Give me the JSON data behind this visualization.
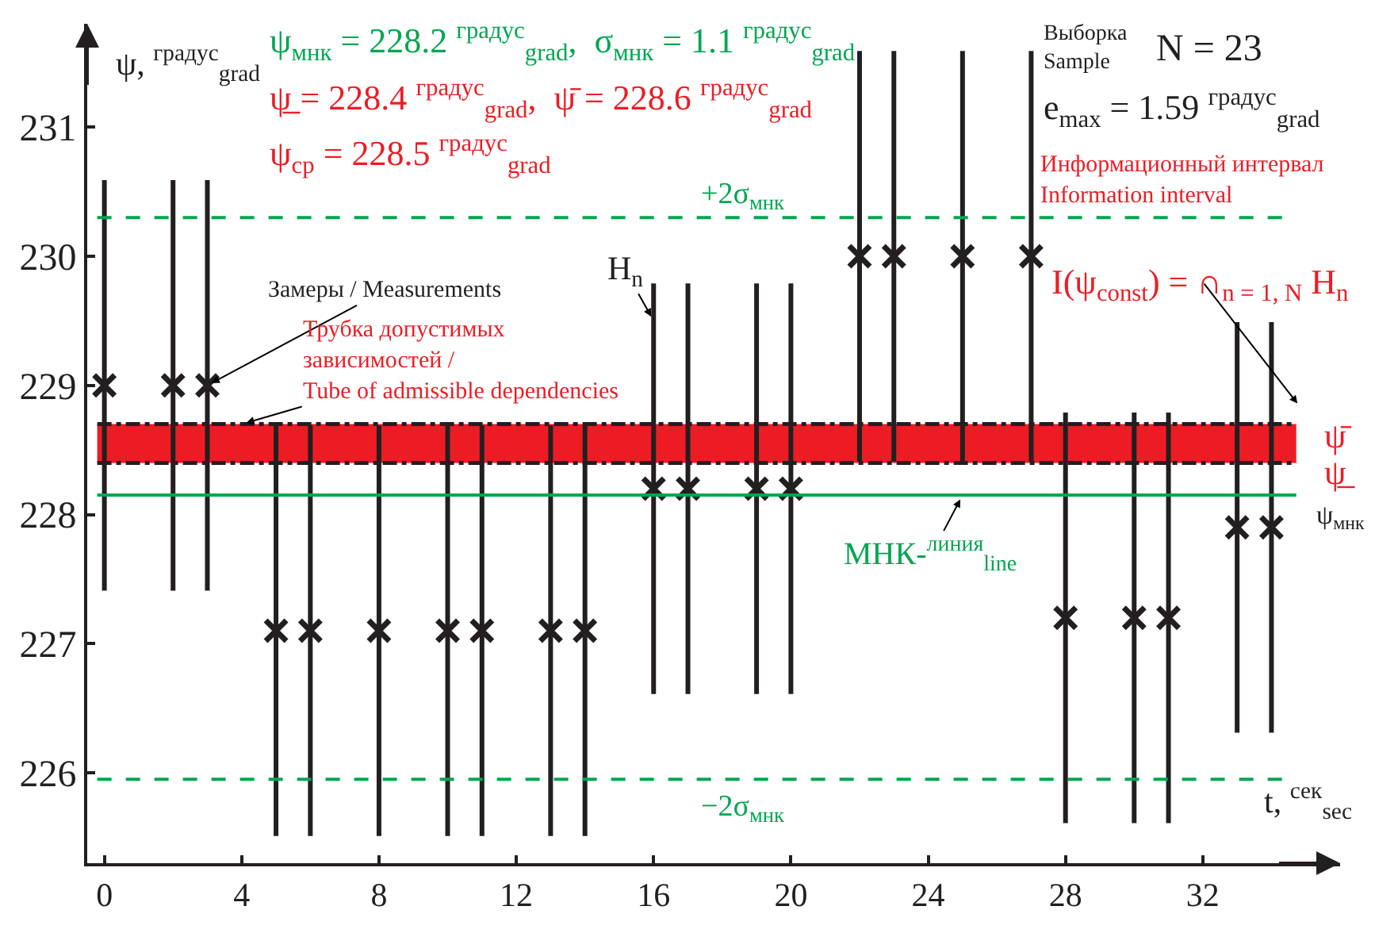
{
  "chart_data": {
    "type": "scatter",
    "xlabel": "t, $^{сек}$$_{sec}$",
    "ylabel": "ψ, $^{градус}$$_{grad}$",
    "x": [
      0,
      2,
      3,
      5,
      6,
      8,
      10,
      11,
      13,
      14,
      16,
      17,
      19,
      20,
      22,
      23,
      25,
      27,
      28,
      30,
      31,
      33,
      34
    ],
    "series": [
      {
        "color": "#231f20",
        "values": [
          229,
          229,
          229,
          227.1,
          227.1,
          227.1,
          227.1,
          227.1,
          227.1,
          227.1,
          228.2,
          228.2,
          228.2,
          228.2,
          230.0,
          230.0,
          230.0,
          230.0,
          227.2,
          227.2,
          227.2,
          227.9,
          227.9
        ],
        "errors": [
          1.59,
          1.59,
          1.59,
          1.59,
          1.59,
          1.59,
          1.59,
          1.59,
          1.59,
          1.59,
          1.59,
          1.59,
          1.59,
          1.59,
          1.59,
          1.59,
          1.59,
          1.59,
          1.59,
          1.59,
          1.59,
          1.59,
          1.59
        ]
      }
    ],
    "marker": "cross",
    "xlim": [
      -0.5,
      36
    ],
    "xticks": [
      0,
      4,
      8,
      12,
      16,
      20,
      24,
      28,
      32
    ],
    "ylim": [
      225.3,
      231.8
    ],
    "yticks": [
      226,
      227,
      228,
      229,
      230,
      231
    ],
    "grid": false,
    "legend": false,
    "bands": [
      {
        "axis": "y",
        "from": 228.4,
        "to": 228.7,
        "color": "#ed1c24"
      }
    ],
    "ref_lines": [
      {
        "axis": "y",
        "value": 228.15,
        "label": "ψ$_{мнк}$",
        "color": "#00a650",
        "line_style": "solid"
      },
      {
        "axis": "y",
        "value": 230.3,
        "label": "+2σ$_{мнк}$",
        "color": "#00a650",
        "line_style": "dashed"
      },
      {
        "axis": "y",
        "value": 225.95,
        "label": "−2σ$_{мнк}$",
        "color": "#00a650",
        "line_style": "dashed"
      },
      {
        "axis": "y",
        "value": 228.4,
        "color": "#231f20",
        "line_style": "dashdot"
      },
      {
        "axis": "y",
        "value": 228.7,
        "color": "#231f20",
        "line_style": "dashdot"
      }
    ],
    "annotations": [
      "ψ$_{мнк}$ = 228.2 $^{градус}$$_{grad}$,  σ$_{мнк}$ = 1.1 $^{градус}$$_{grad}$",
      "ψ̲ = 228.4 $^{градус}$$_{grad}$,  ψ̄ = 228.6 $^{градус}$$_{grad}$",
      "ψ$_{ср}$ = 228.5 $^{градус}$$_{grad}$",
      "Выборка\nSample",
      "N = 23",
      "e$_{max}$ = 1.59 $^{градус}$$_{grad}$",
      "Информационный интервал\nInformation interval",
      {
        "text": "Замеры / Measurements",
        "x": 3,
        "y": 229
      },
      {
        "text": "Трубка допустимых\nзависимостей /\nTube of admissible dependencies",
        "x": 4,
        "y": 228.7
      },
      {
        "text": "H$_{n}$",
        "x": 16,
        "y": 229.5
      },
      {
        "text": "МНК-$^{линия}$$_{line}$",
        "x": 25,
        "y": 228.15
      },
      "I(ψ$_{const}$) = ∩$_{n = 1, N}$ H$_{n}$",
      "ψ̄",
      "ψ̲"
    ]
  }
}
